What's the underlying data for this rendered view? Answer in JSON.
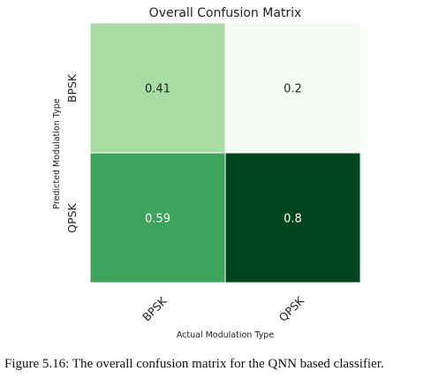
{
  "chart_data": {
    "type": "heatmap",
    "title": "Overall Confusion Matrix",
    "xlabel": "Actual Modulation Type",
    "ylabel": "Predicted Modulation Type",
    "x_categories": [
      "BPSK",
      "QPSK"
    ],
    "y_categories": [
      "BPSK",
      "QPSK"
    ],
    "values": [
      [
        0.41,
        0.2
      ],
      [
        0.59,
        0.8
      ]
    ],
    "value_labels": [
      [
        "0.41",
        "0.2"
      ],
      [
        "0.59",
        "0.8"
      ]
    ],
    "colormap": "Greens",
    "cell_colors": [
      [
        "#a9dca3",
        "#f4fbf2"
      ],
      [
        "#40a35b",
        "#00441b"
      ]
    ],
    "label_colors": [
      [
        "#222222",
        "#222222"
      ],
      [
        "#ffffff",
        "#ffffff"
      ]
    ]
  },
  "caption": "Figure 5.16: The overall confusion matrix for the QNN based classifier."
}
